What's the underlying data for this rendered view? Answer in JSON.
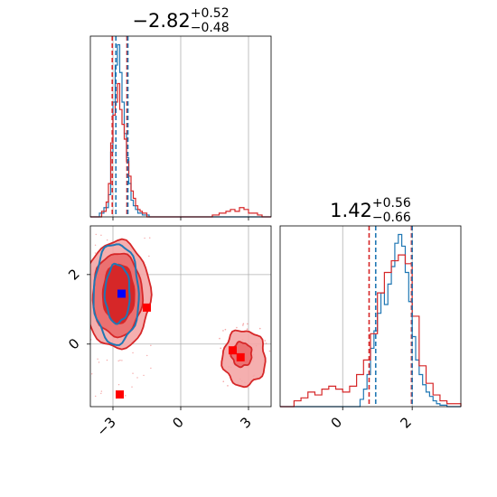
{
  "colors": {
    "red": "#d62728",
    "blue": "#1f77b4",
    "red_fill_light": "#f4a6a6",
    "red_fill_mid": "#ea6a6a",
    "marker_red": "#ff0000",
    "marker_blue": "#0000ff",
    "grid": "#b0b0b0"
  },
  "chart_data": [
    {
      "type": "histogram",
      "panel": "marginal-param-1",
      "title_value": "−2.82",
      "title_sup": "+0.52",
      "title_sub": "−0.48",
      "xlim": [
        -4.0,
        4.0
      ],
      "xticks": [
        -3,
        0,
        3
      ],
      "grid": true,
      "vlines": {
        "red": [
          -3.03,
          -2.38
        ],
        "blue": [
          -2.87,
          -2.34
        ]
      },
      "series": [
        {
          "color": "blue",
          "bin_edges": [
            -4.0,
            -3.6,
            -3.4,
            -3.2,
            -3.1,
            -3.0,
            -2.9,
            -2.8,
            -2.7,
            -2.6,
            -2.5,
            -2.4,
            -2.3,
            -2.2,
            -2.1,
            -2.0,
            -1.9,
            -1.7,
            -1.4,
            4.0
          ],
          "heights": [
            0,
            2,
            5,
            12,
            35,
            62,
            82,
            93,
            78,
            62,
            45,
            32,
            18,
            9,
            6,
            4,
            2,
            1,
            0
          ]
        },
        {
          "color": "red",
          "bin_edges": [
            -4.0,
            -3.5,
            -3.3,
            -3.2,
            -3.1,
            -3.0,
            -2.9,
            -2.8,
            -2.7,
            -2.6,
            -2.5,
            -2.4,
            -2.3,
            -2.2,
            -2.1,
            -2.0,
            -1.9,
            -1.8,
            -1.7,
            -1.5,
            1.4,
            1.7,
            2.0,
            2.2,
            2.4,
            2.6,
            2.8,
            3.0,
            3.2,
            3.4,
            3.6,
            4.0
          ],
          "heights": [
            0,
            3,
            8,
            18,
            40,
            55,
            62,
            72,
            58,
            50,
            42,
            30,
            22,
            14,
            10,
            6,
            4,
            3,
            2,
            0,
            1,
            2,
            3,
            4,
            3,
            5,
            4,
            2,
            2,
            1,
            0
          ]
        }
      ]
    },
    {
      "type": "histogram",
      "panel": "marginal-param-2",
      "title_value": "1.42",
      "title_sup": "+0.56",
      "title_sub": "−0.66",
      "xlim": [
        -1.8,
        3.4
      ],
      "xticks": [
        0,
        2
      ],
      "grid": true,
      "vlines": {
        "red": [
          0.76,
          1.98
        ],
        "blue": [
          0.95,
          2.0
        ]
      },
      "series": [
        {
          "color": "blue",
          "bin_edges": [
            -1.8,
            0.5,
            0.6,
            0.7,
            0.8,
            0.9,
            1.0,
            1.1,
            1.2,
            1.3,
            1.4,
            1.5,
            1.6,
            1.7,
            1.8,
            1.9,
            2.0,
            2.1,
            2.2,
            2.3,
            2.4,
            2.5,
            2.6,
            2.7,
            2.8,
            3.0,
            3.4
          ],
          "heights": [
            0,
            5,
            12,
            22,
            40,
            52,
            64,
            78,
            70,
            84,
            96,
            112,
            118,
            110,
            92,
            72,
            48,
            32,
            22,
            15,
            10,
            7,
            4,
            2,
            1,
            0
          ]
        },
        {
          "color": "red",
          "bin_edges": [
            -1.8,
            -1.4,
            -1.2,
            -1.0,
            -0.8,
            -0.6,
            -0.4,
            -0.2,
            0.0,
            0.2,
            0.4,
            0.6,
            0.8,
            1.0,
            1.2,
            1.4,
            1.6,
            1.8,
            2.0,
            2.2,
            2.4,
            2.6,
            2.8,
            3.0,
            3.4
          ],
          "heights": [
            0,
            4,
            6,
            10,
            8,
            12,
            14,
            12,
            10,
            14,
            22,
            32,
            50,
            78,
            92,
            100,
            104,
            98,
            62,
            28,
            16,
            8,
            4,
            2
          ]
        }
      ]
    },
    {
      "type": "contour",
      "panel": "joint-param-1-param-2",
      "xlim": [
        -4.0,
        4.0
      ],
      "ylim": [
        -1.8,
        3.4
      ],
      "xticks": [
        -3,
        0,
        3
      ],
      "yticks": [
        0,
        2
      ],
      "grid": true,
      "red_contours": [
        {
          "level": "outer",
          "cx": -2.8,
          "cy": 1.42,
          "rx": 1.45,
          "ry": 1.55
        },
        {
          "level": "middle",
          "cx": -2.8,
          "cy": 1.42,
          "rx": 1.1,
          "ry": 1.2
        },
        {
          "level": "inner",
          "cx": -2.75,
          "cy": 1.45,
          "rx": 0.7,
          "ry": 0.85
        }
      ],
      "red_secondary_contours": [
        {
          "level": "outer",
          "cx": 2.8,
          "cy": -0.4,
          "rx": 0.95,
          "ry": 0.8
        },
        {
          "level": "inner",
          "cx": 2.7,
          "cy": -0.3,
          "rx": 0.45,
          "ry": 0.35
        }
      ],
      "blue_contours": [
        {
          "level": "outer",
          "cx": -2.85,
          "cy": 1.45,
          "rx": 1.0,
          "ry": 1.45
        },
        {
          "level": "inner",
          "cx": -2.8,
          "cy": 1.45,
          "rx": 0.55,
          "ry": 0.85
        }
      ],
      "red_markers": [
        {
          "x": -1.5,
          "y": 1.05
        },
        {
          "x": 2.3,
          "y": -0.18
        },
        {
          "x": 2.65,
          "y": -0.38
        },
        {
          "x": -2.7,
          "y": -1.45
        }
      ],
      "blue_markers": [
        {
          "x": -2.62,
          "y": 1.45
        }
      ]
    }
  ]
}
